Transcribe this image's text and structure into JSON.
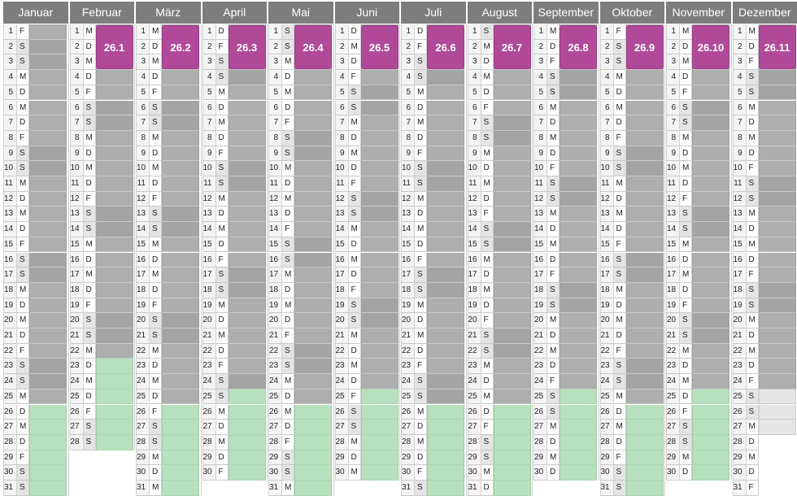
{
  "year_calendar": {
    "months": [
      {
        "name": "Januar",
        "days": 31,
        "first_weekday": 5,
        "badge": "",
        "grey_to": 25,
        "green": [
          26,
          31
        ],
        "light": []
      },
      {
        "name": "Februar",
        "days": 28,
        "first_weekday": 1,
        "badge": "26.1",
        "grey_to": 22,
        "green": [
          23,
          28
        ],
        "light": []
      },
      {
        "name": "März",
        "days": 31,
        "first_weekday": 1,
        "badge": "26.2",
        "grey_to": 25,
        "green": [
          26,
          31
        ],
        "light": []
      },
      {
        "name": "April",
        "days": 30,
        "first_weekday": 4,
        "badge": "26.3",
        "grey_to": 24,
        "green": [
          25,
          30
        ],
        "light": []
      },
      {
        "name": "Mai",
        "days": 31,
        "first_weekday": 6,
        "badge": "26.4",
        "grey_to": 25,
        "green": [
          26,
          31
        ],
        "light": []
      },
      {
        "name": "Juni",
        "days": 30,
        "first_weekday": 2,
        "badge": "26.5",
        "grey_to": 24,
        "green": [
          25,
          30
        ],
        "light": []
      },
      {
        "name": "Juli",
        "days": 31,
        "first_weekday": 4,
        "badge": "26.6",
        "grey_to": 25,
        "green": [
          26,
          31
        ],
        "light": []
      },
      {
        "name": "August",
        "days": 31,
        "first_weekday": 0,
        "badge": "26.7",
        "grey_to": 25,
        "green": [
          26,
          31
        ],
        "light": []
      },
      {
        "name": "September",
        "days": 30,
        "first_weekday": 3,
        "badge": "26.8",
        "grey_to": 24,
        "green": [
          25,
          30
        ],
        "light": []
      },
      {
        "name": "Oktober",
        "days": 31,
        "first_weekday": 5,
        "badge": "26.9",
        "grey_to": 25,
        "green": [
          26,
          31
        ],
        "light": []
      },
      {
        "name": "November",
        "days": 30,
        "first_weekday": 1,
        "badge": "26.10",
        "grey_to": 24,
        "green": [
          25,
          30
        ],
        "light": []
      },
      {
        "name": "Dezember",
        "days": 31,
        "first_weekday": 3,
        "badge": "26.11",
        "grey_to": 24,
        "green": [],
        "light": [
          25,
          27
        ]
      }
    ],
    "weekday_letters": [
      "S",
      "M",
      "D",
      "M",
      "D",
      "F",
      "S"
    ],
    "weekend_letter_indices": [
      0,
      6
    ]
  },
  "colors": {
    "header_bg": "#7d7d7d",
    "badge": "#b04a98",
    "grey_bar": "#aeaeae",
    "green_bar": "#b8e0bf",
    "weekend_cell": "#e4e4e4"
  }
}
